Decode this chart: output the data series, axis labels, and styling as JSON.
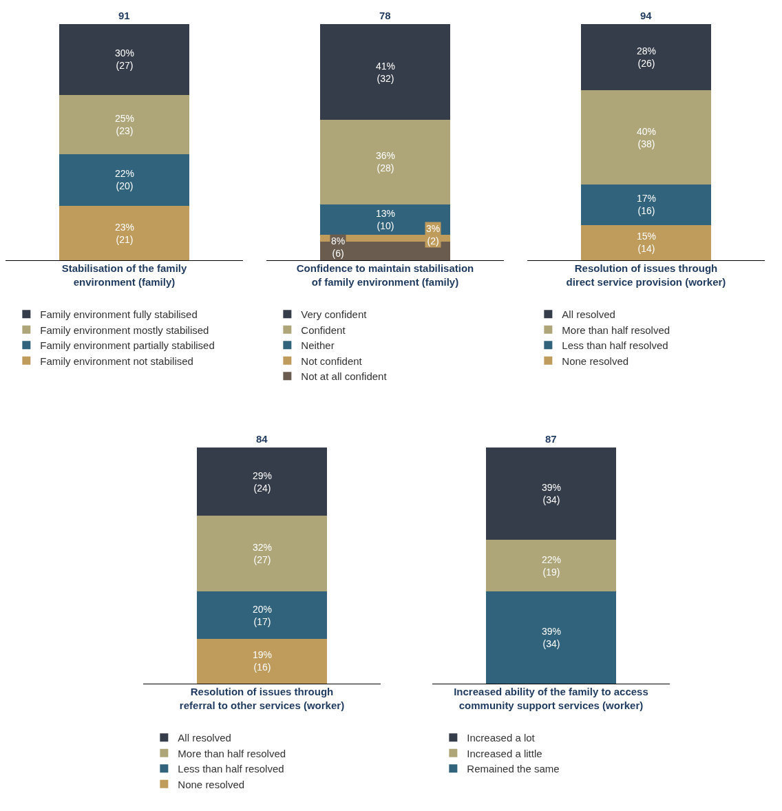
{
  "chart_data": [
    {
      "type": "bar",
      "stacked": true,
      "categories": [
        null
      ],
      "xlabel": "Stabilisation of the family environment (family)",
      "tick_labels": false,
      "grid": false,
      "legend": "bottom",
      "annotations": [
        "91"
      ],
      "series": [
        {
          "name": "Family environment not stabilised",
          "color": "#bf9b5c",
          "values": [
            23
          ],
          "value_labels": [
            "23%\n(21)"
          ]
        },
        {
          "name": "Family environment partially stabilised",
          "color": "#31637c",
          "values": [
            22
          ],
          "value_labels": [
            "22%\n(20)"
          ]
        },
        {
          "name": "Family environment mostly stabilised",
          "color": "#aea679",
          "values": [
            25
          ],
          "value_labels": [
            "25%\n(23)"
          ]
        },
        {
          "name": "Family environment fully stabilised",
          "color": "#363d4a",
          "values": [
            30
          ],
          "value_labels": [
            "30%\n(27)"
          ]
        }
      ]
    },
    {
      "type": "bar",
      "stacked": true,
      "categories": [
        null
      ],
      "xlabel": "Confidence to maintain stabilisation of family environment (family)",
      "tick_labels": false,
      "grid": false,
      "legend": "bottom",
      "annotations": [
        "78"
      ],
      "series": [
        {
          "name": "Not at all confident",
          "color": "#6a5d50",
          "values": [
            8
          ],
          "value_labels": [
            "8%\n(6)"
          ]
        },
        {
          "name": "Not confident",
          "color": "#bf9b5c",
          "values": [
            3
          ],
          "value_labels": [
            "3%\n(2)"
          ]
        },
        {
          "name": "Neither",
          "color": "#31637c",
          "values": [
            13
          ],
          "value_labels": [
            "13%\n(10)"
          ]
        },
        {
          "name": "Confident",
          "color": "#aea679",
          "values": [
            36
          ],
          "value_labels": [
            "36%\n(28)"
          ]
        },
        {
          "name": "Very confident",
          "color": "#363d4a",
          "values": [
            41
          ],
          "value_labels": [
            "41%\n(32)"
          ]
        }
      ]
    },
    {
      "type": "bar",
      "stacked": true,
      "categories": [
        null
      ],
      "xlabel": "Resolution of issues through direct service provision (worker)",
      "tick_labels": false,
      "grid": false,
      "legend": "bottom",
      "annotations": [
        "94"
      ],
      "series": [
        {
          "name": "None resolved",
          "color": "#bf9b5c",
          "values": [
            15
          ],
          "value_labels": [
            "15%\n(14)"
          ]
        },
        {
          "name": "Less than half resolved",
          "color": "#31637c",
          "values": [
            17
          ],
          "value_labels": [
            "17%\n(16)"
          ]
        },
        {
          "name": "More than half resolved",
          "color": "#aea679",
          "values": [
            40
          ],
          "value_labels": [
            "40%\n(38)"
          ]
        },
        {
          "name": "All resolved",
          "color": "#363d4a",
          "values": [
            28
          ],
          "value_labels": [
            "28%\n(26)"
          ]
        }
      ]
    },
    {
      "type": "bar",
      "stacked": true,
      "categories": [
        null
      ],
      "xlabel": "Resolution of issues through referral to other services (worker)",
      "tick_labels": false,
      "grid": false,
      "legend": "bottom",
      "annotations": [
        "84"
      ],
      "series": [
        {
          "name": "None resolved",
          "color": "#bf9b5c",
          "values": [
            19
          ],
          "value_labels": [
            "19%\n(16)"
          ]
        },
        {
          "name": "Less than half resolved",
          "color": "#31637c",
          "values": [
            20
          ],
          "value_labels": [
            "20%\n(17)"
          ]
        },
        {
          "name": "More than half resolved",
          "color": "#aea679",
          "values": [
            32
          ],
          "value_labels": [
            "32%\n(27)"
          ]
        },
        {
          "name": "All resolved",
          "color": "#363d4a",
          "values": [
            29
          ],
          "value_labels": [
            "29%\n(24)"
          ]
        }
      ]
    },
    {
      "type": "bar",
      "stacked": true,
      "categories": [
        null
      ],
      "xlabel": "Increased ability of the family to access community support services (worker)",
      "tick_labels": false,
      "grid": false,
      "legend": "bottom",
      "annotations": [
        "87"
      ],
      "series": [
        {
          "name": "Remained the same",
          "color": "#31637c",
          "values": [
            39
          ],
          "value_labels": [
            "39%\n(34)"
          ]
        },
        {
          "name": "Increased a little",
          "color": "#aea679",
          "values": [
            22
          ],
          "value_labels": [
            "22%\n(19)"
          ]
        },
        {
          "name": "Increased a lot",
          "color": "#363d4a",
          "values": [
            39
          ],
          "value_labels": [
            "39%\n(34)"
          ]
        }
      ]
    }
  ]
}
